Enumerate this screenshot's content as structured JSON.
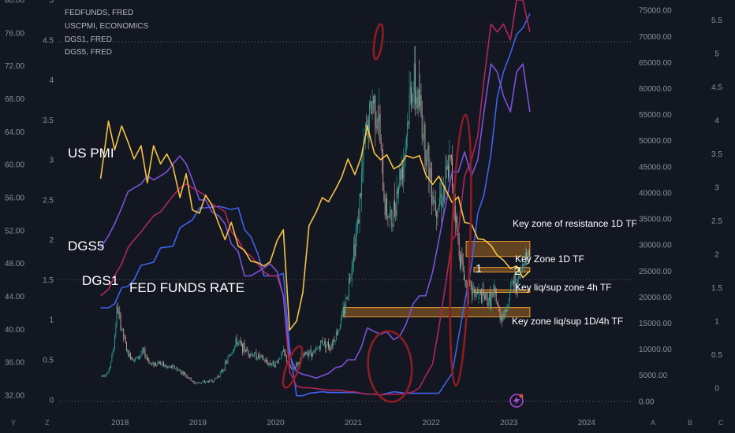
{
  "legend": [
    "FEDFUNDS, FRED",
    "USCPMI, ECONOMICS",
    "DGS1, FRED",
    "DGS5, FRED"
  ],
  "corner_letters": {
    "left1": "Y",
    "left2": "Z",
    "right1": "A",
    "right2": "B",
    "right3": "C"
  },
  "colors": {
    "background": "#131722",
    "pmi": "#f7c244",
    "dgs5": "#7b52d9",
    "dgs1": "#b0265a",
    "fedfunds": "#3f63ee",
    "candle_up": "#26a69a",
    "candle_down": "#d9a19a",
    "zone_fill": "#c27a22",
    "circle": "#8f1c22"
  },
  "annotations": {
    "us_pmi": "US PMI",
    "dgs5": "DGS5",
    "dgs1": "DGS1",
    "fed_funds_rate": "FED FUNDS RATE",
    "zone_resistance": "Key zone of resistance 1D TF",
    "zone_1d": "Key Zone 1D TF",
    "zone_4h": "Key liq/sup zone 4h TF",
    "zone_1d4h": "Key zone liq/sup 1D/4h TF",
    "label_1": "1",
    "label_2": "2"
  },
  "chart_data": {
    "type": "line",
    "title": "",
    "x_axis": {
      "labels": [
        "2018",
        "2019",
        "2020",
        "2021",
        "2022",
        "2023",
        "2024"
      ],
      "range": [
        2017.5,
        2024.6
      ]
    },
    "pmi_axis": {
      "labels": [
        "80.00",
        "76.00",
        "72.00",
        "68.00",
        "64.00",
        "60.00",
        "56.00",
        "52.00",
        "48.00",
        "44.00",
        "40.00",
        "36.00",
        "32.00"
      ],
      "range": [
        30,
        80
      ]
    },
    "rate_axis_left": {
      "labels": [
        "5",
        "4.5",
        "4",
        "3.5",
        "3",
        "2.5",
        "2",
        "1.5",
        "1",
        "0.5",
        "0"
      ],
      "range": [
        -0.15,
        5
      ]
    },
    "btc_axis": {
      "labels": [
        "75000.00",
        "70000.00",
        "65000.00",
        "60000.00",
        "55000.00",
        "50000.00",
        "45000.00",
        "40000.00",
        "35000.00",
        "30000.00",
        "25000.00",
        "20000.00",
        "15000.00",
        "10000.00",
        "5000.00",
        "0.00"
      ],
      "range": [
        -2000,
        77000
      ]
    },
    "rate_axis_right": {
      "labels": [
        "5.5",
        "5",
        "4.5",
        "4",
        "3.5",
        "3",
        "2.5",
        "2",
        "1.5",
        "1",
        "0.5",
        "0"
      ],
      "range": [
        -0.35,
        5.8
      ]
    },
    "series": [
      {
        "name": "USCPMI, ECONOMICS",
        "axis": "pmi",
        "color": "#f7c244",
        "x": [
          2017.75,
          2017.85,
          2017.93,
          2018.02,
          2018.1,
          2018.18,
          2018.27,
          2018.35,
          2018.43,
          2018.52,
          2018.6,
          2018.68,
          2018.77,
          2018.85,
          2018.93,
          2019.02,
          2019.1,
          2019.18,
          2019.27,
          2019.35,
          2019.43,
          2019.52,
          2019.6,
          2019.68,
          2019.77,
          2019.85,
          2019.93,
          2020.02,
          2020.1,
          2020.18,
          2020.27,
          2020.35,
          2020.43,
          2020.52,
          2020.6,
          2020.68,
          2020.77,
          2020.85,
          2020.93,
          2021.02,
          2021.1,
          2021.18,
          2021.27,
          2021.35,
          2021.43,
          2021.52,
          2021.6,
          2021.68,
          2021.77,
          2021.85,
          2021.93,
          2022.02,
          2022.1,
          2022.18,
          2022.27,
          2022.35,
          2022.43,
          2022.52,
          2022.6,
          2022.68,
          2022.77,
          2022.85,
          2022.93,
          2023.02,
          2023.1,
          2023.18,
          2023.27
        ],
        "values": [
          58.3,
          65.3,
          61.8,
          64.7,
          62.8,
          60.7,
          62.3,
          57.8,
          62.3,
          60.1,
          61.3,
          59.8,
          56.0,
          58.9,
          54.5,
          54.1,
          56.3,
          55.1,
          52.8,
          50.9,
          53.0,
          50.1,
          49.6,
          48.3,
          48.1,
          47.7,
          48.2,
          50.8,
          52.1,
          39.9,
          41.0,
          44.5,
          52.6,
          54.2,
          56.0,
          55.5,
          57.0,
          58.5,
          60.7,
          58.8,
          60.9,
          64.7,
          61.4,
          60.6,
          61.2,
          59.5,
          59.9,
          61.1,
          60.8,
          61.1,
          58.8,
          57.6,
          58.6,
          57.1,
          55.4,
          56.1,
          53.0,
          52.8,
          51.0,
          50.9,
          50.2,
          49.0,
          48.4,
          47.4,
          47.7,
          46.3,
          47.1
        ]
      },
      {
        "name": "DGS5, FRED",
        "axis": "rate_left",
        "color": "#7b52d9",
        "x": [
          2017.75,
          2017.85,
          2017.93,
          2018.02,
          2018.1,
          2018.18,
          2018.27,
          2018.35,
          2018.43,
          2018.52,
          2018.6,
          2018.68,
          2018.77,
          2018.85,
          2018.93,
          2019.02,
          2019.1,
          2019.18,
          2019.27,
          2019.35,
          2019.43,
          2019.52,
          2019.6,
          2019.68,
          2019.77,
          2019.85,
          2019.93,
          2020.02,
          2020.1,
          2020.18,
          2020.27,
          2020.35,
          2020.43,
          2020.52,
          2020.6,
          2020.68,
          2020.77,
          2020.85,
          2020.93,
          2021.02,
          2021.1,
          2021.18,
          2021.27,
          2021.35,
          2021.43,
          2021.52,
          2021.6,
          2021.68,
          2021.77,
          2021.85,
          2021.93,
          2022.02,
          2022.1,
          2022.18,
          2022.27,
          2022.35,
          2022.43,
          2022.52,
          2022.6,
          2022.68,
          2022.77,
          2022.85,
          2022.93,
          2023.02,
          2023.1,
          2023.18,
          2023.27
        ],
        "values": [
          1.9,
          2.05,
          2.2,
          2.4,
          2.6,
          2.65,
          2.7,
          2.8,
          2.75,
          2.8,
          2.85,
          2.95,
          3.05,
          2.95,
          2.75,
          2.5,
          2.5,
          2.35,
          2.3,
          2.2,
          1.95,
          1.85,
          1.55,
          1.55,
          1.6,
          1.65,
          1.7,
          1.6,
          1.3,
          0.55,
          0.35,
          0.32,
          0.3,
          0.27,
          0.3,
          0.33,
          0.4,
          0.42,
          0.5,
          0.5,
          0.65,
          0.9,
          0.85,
          0.82,
          0.85,
          0.75,
          0.8,
          0.95,
          1.2,
          1.3,
          1.3,
          1.6,
          2.0,
          2.4,
          2.85,
          2.85,
          3.1,
          2.8,
          3.0,
          3.6,
          4.2,
          4.1,
          3.8,
          3.6,
          4.1,
          4.2,
          3.6
        ]
      },
      {
        "name": "DGS1, FRED",
        "axis": "rate_left",
        "color": "#b0265a",
        "x": [
          2017.75,
          2017.85,
          2017.93,
          2018.02,
          2018.1,
          2018.18,
          2018.27,
          2018.35,
          2018.43,
          2018.52,
          2018.6,
          2018.68,
          2018.77,
          2018.85,
          2018.93,
          2019.02,
          2019.1,
          2019.18,
          2019.27,
          2019.35,
          2019.43,
          2019.52,
          2019.6,
          2019.68,
          2019.77,
          2019.85,
          2019.93,
          2020.02,
          2020.1,
          2020.18,
          2020.27,
          2020.35,
          2020.43,
          2020.52,
          2020.6,
          2020.68,
          2020.77,
          2020.85,
          2020.93,
          2021.02,
          2021.1,
          2021.18,
          2021.27,
          2021.35,
          2021.43,
          2021.52,
          2021.6,
          2021.68,
          2021.77,
          2021.85,
          2021.93,
          2022.02,
          2022.1,
          2022.18,
          2022.27,
          2022.35,
          2022.43,
          2022.52,
          2022.6,
          2022.68,
          2022.77,
          2022.85,
          2022.93,
          2023.02,
          2023.1,
          2023.18,
          2023.27
        ],
        "values": [
          1.3,
          1.38,
          1.55,
          1.7,
          1.9,
          2.0,
          2.1,
          2.2,
          2.3,
          2.35,
          2.45,
          2.55,
          2.65,
          2.7,
          2.65,
          2.6,
          2.55,
          2.45,
          2.4,
          2.35,
          2.1,
          2.0,
          1.85,
          1.8,
          1.7,
          1.6,
          1.55,
          1.55,
          1.3,
          0.35,
          0.17,
          0.15,
          0.15,
          0.14,
          0.13,
          0.12,
          0.12,
          0.12,
          0.1,
          0.1,
          0.08,
          0.07,
          0.07,
          0.06,
          0.07,
          0.07,
          0.07,
          0.08,
          0.1,
          0.15,
          0.3,
          0.45,
          0.9,
          1.4,
          2.0,
          2.1,
          2.8,
          3.0,
          3.3,
          4.0,
          4.7,
          4.6,
          4.7,
          4.5,
          5.0,
          5.0,
          4.6
        ]
      },
      {
        "name": "FEDFUNDS, FRED",
        "axis": "rate_left",
        "color": "#3f63ee",
        "x": [
          2017.75,
          2017.85,
          2017.93,
          2018.02,
          2018.1,
          2018.18,
          2018.27,
          2018.35,
          2018.43,
          2018.52,
          2018.6,
          2018.68,
          2018.77,
          2018.85,
          2018.93,
          2019.02,
          2019.1,
          2019.18,
          2019.27,
          2019.35,
          2019.43,
          2019.52,
          2019.6,
          2019.68,
          2019.77,
          2019.85,
          2019.93,
          2020.02,
          2020.1,
          2020.18,
          2020.27,
          2020.35,
          2020.43,
          2020.52,
          2020.6,
          2020.68,
          2020.77,
          2020.85,
          2020.93,
          2021.02,
          2021.1,
          2021.18,
          2021.27,
          2021.35,
          2021.43,
          2021.52,
          2021.6,
          2021.68,
          2021.77,
          2021.85,
          2021.93,
          2022.02,
          2022.1,
          2022.18,
          2022.27,
          2022.35,
          2022.43,
          2022.52,
          2022.6,
          2022.68,
          2022.77,
          2022.85,
          2022.93,
          2023.02,
          2023.1,
          2023.18,
          2023.27
        ],
        "values": [
          1.15,
          1.15,
          1.2,
          1.4,
          1.42,
          1.5,
          1.68,
          1.7,
          1.72,
          1.9,
          1.91,
          1.92,
          2.15,
          2.2,
          2.25,
          2.4,
          2.4,
          2.41,
          2.42,
          2.4,
          2.38,
          2.4,
          2.13,
          2.04,
          1.83,
          1.55,
          1.55,
          1.55,
          1.58,
          0.65,
          0.05,
          0.05,
          0.08,
          0.09,
          0.1,
          0.09,
          0.09,
          0.09,
          0.09,
          0.09,
          0.08,
          0.07,
          0.07,
          0.06,
          0.08,
          0.1,
          0.09,
          0.08,
          0.08,
          0.08,
          0.08,
          0.08,
          0.08,
          0.2,
          0.33,
          0.77,
          1.21,
          1.68,
          2.33,
          2.56,
          3.08,
          3.78,
          4.1,
          4.33,
          4.57,
          4.65,
          4.83
        ]
      }
    ],
    "candles": {
      "name": "BTCUSD",
      "axis": "btc",
      "anchors_x": [
        2017.75,
        2017.85,
        2017.92,
        2017.96,
        2018.02,
        2018.1,
        2018.2,
        2018.3,
        2018.4,
        2018.5,
        2018.6,
        2018.7,
        2018.85,
        2018.95,
        2019.05,
        2019.2,
        2019.3,
        2019.4,
        2019.5,
        2019.6,
        2019.7,
        2019.8,
        2019.9,
        2020.0,
        2020.1,
        2020.2,
        2020.3,
        2020.4,
        2020.5,
        2020.6,
        2020.7,
        2020.8,
        2020.9,
        2021.0,
        2021.05,
        2021.15,
        2021.25,
        2021.32,
        2021.4,
        2021.5,
        2021.55,
        2021.65,
        2021.75,
        2021.85,
        2021.95,
        2022.05,
        2022.15,
        2022.25,
        2022.35,
        2022.45,
        2022.55,
        2022.65,
        2022.75,
        2022.82,
        2022.88,
        2022.95,
        2023.05,
        2023.12,
        2023.2,
        2023.27
      ],
      "anchors_y": [
        4800,
        5500,
        10500,
        18000,
        14000,
        9000,
        8000,
        9500,
        7000,
        7500,
        6500,
        6500,
        5000,
        3500,
        3600,
        4000,
        5500,
        8500,
        11500,
        10000,
        9000,
        8500,
        7300,
        7200,
        9500,
        6000,
        7500,
        9500,
        9200,
        11500,
        10500,
        13500,
        18500,
        29000,
        33000,
        50000,
        58000,
        55000,
        38000,
        34000,
        40000,
        47000,
        61000,
        57000,
        47000,
        38000,
        40000,
        46000,
        30000,
        22000,
        21000,
        20000,
        19500,
        20500,
        16500,
        16800,
        23000,
        22500,
        28000,
        28500
      ],
      "count": 440,
      "seed": 7
    },
    "zones": [
      {
        "label": "Key zone of resistance 1D TF",
        "x_start": 2022.45,
        "x_end": 2023.27,
        "y_low": 27800,
        "y_high": 30700
      },
      {
        "label": "Key Zone 1D TF",
        "x_start": 2022.55,
        "x_end": 2023.27,
        "y_low": 24800,
        "y_high": 25700
      },
      {
        "label": "Key liq/sup zone 4h TF",
        "x_start": 2022.55,
        "x_end": 2023.27,
        "y_low": 20900,
        "y_high": 21400
      },
      {
        "label": "Key zone liq/sup 1D/4h TF",
        "x_start": 2020.87,
        "x_end": 2023.27,
        "y_low": 16200,
        "y_high": 18000
      }
    ],
    "circles": [
      {
        "x": 2021.32,
        "y": 69000,
        "rx_years": 0.05,
        "ry_units": 3400,
        "rot": 8
      },
      {
        "x": 2020.22,
        "y": 6600,
        "rx_years": 0.08,
        "ry_units": 4200,
        "rot": 20
      },
      {
        "x": 2021.47,
        "y": 6700,
        "rx_years": 0.28,
        "ry_units": 6800,
        "rot": -5
      },
      {
        "x": 2022.38,
        "y": 29000,
        "rx_years": 0.12,
        "ry_units": 26000,
        "rot": 2
      }
    ],
    "reference_lines": [
      {
        "axis": "btc",
        "value": 69000
      },
      {
        "axis": "btc",
        "value": 0
      },
      {
        "axis": "rate_left",
        "value": 1.5
      }
    ]
  }
}
